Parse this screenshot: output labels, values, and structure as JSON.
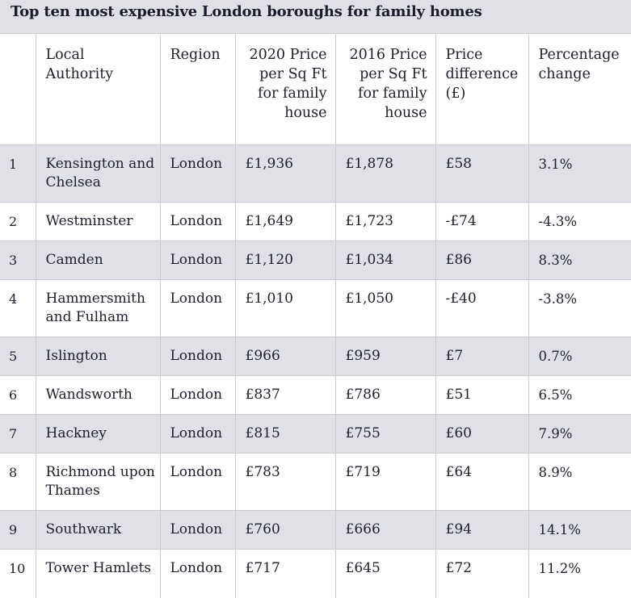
{
  "title": "Top ten most expensive London boroughs for family homes",
  "columns": {
    "rank": "",
    "authority": "Local Authority",
    "region": "Region",
    "price_2020": "2020 Price per Sq Ft for family house",
    "price_2016": "2016 Price per Sq Ft for family house",
    "difference": "Price difference (£)",
    "percentage": "Percentage change"
  },
  "rows": [
    {
      "rank": "1",
      "authority": "Kensington and Chelsea",
      "region": "London",
      "price_2020": "£1,936",
      "price_2016": "£1,878",
      "difference": "£58",
      "percentage": "3.1%"
    },
    {
      "rank": "2",
      "authority": "Westminster",
      "region": "London",
      "price_2020": "£1,649",
      "price_2016": "£1,723",
      "difference": "-£74",
      "percentage": "-4.3%"
    },
    {
      "rank": "3",
      "authority": "Camden",
      "region": "London",
      "price_2020": "£1,120",
      "price_2016": "£1,034",
      "difference": "£86",
      "percentage": "8.3%"
    },
    {
      "rank": "4",
      "authority": "Hammersmith and Fulham",
      "region": "London",
      "price_2020": "£1,010",
      "price_2016": "£1,050",
      "difference": "-£40",
      "percentage": "-3.8%"
    },
    {
      "rank": "5",
      "authority": "Islington",
      "region": "London",
      "price_2020": "£966",
      "price_2016": "£959",
      "difference": "£7",
      "percentage": "0.7%"
    },
    {
      "rank": "6",
      "authority": "Wandsworth",
      "region": "London",
      "price_2020": "£837",
      "price_2016": "£786",
      "difference": "£51",
      "percentage": "6.5%"
    },
    {
      "rank": "7",
      "authority": "Hackney",
      "region": "London",
      "price_2020": "£815",
      "price_2016": "£755",
      "difference": "£60",
      "percentage": "7.9%"
    },
    {
      "rank": "8",
      "authority": "Richmond upon Thames",
      "region": "London",
      "price_2020": "£783",
      "price_2016": "£719",
      "difference": "£64",
      "percentage": "8.9%"
    },
    {
      "rank": "9",
      "authority": "Southwark",
      "region": "London",
      "price_2020": "£760",
      "price_2016": "£666",
      "difference": "£94",
      "percentage": "14.1%"
    },
    {
      "rank": "10",
      "authority": "Tower Hamlets",
      "region": "London",
      "price_2020": "£717",
      "price_2016": "£645",
      "difference": "£72",
      "percentage": "11.2%"
    }
  ]
}
